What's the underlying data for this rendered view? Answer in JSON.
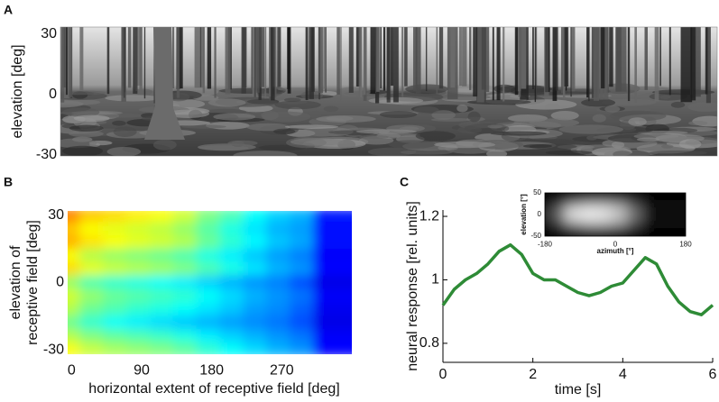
{
  "chart_data": [
    {
      "type": "image",
      "label": "A",
      "ylabel": "elevation [deg]",
      "ylim": [
        -30.5,
        33.6
      ],
      "yticks": [
        -30,
        0,
        30
      ]
    },
    {
      "type": "heatmap",
      "label": "B",
      "ylabel_lines": [
        "elevation of",
        "receptive field [deg]"
      ],
      "xlabel": "horizontal extent of receptive field [deg]",
      "xlim": [
        -5,
        360
      ],
      "xticks": [
        0,
        90,
        180,
        270
      ],
      "ylim": [
        -32,
        32
      ],
      "yticks": [
        -30,
        0,
        30
      ],
      "colormap": "jet",
      "zlim": [
        0,
        1
      ],
      "x": [
        0,
        30,
        60,
        90,
        120,
        150,
        180,
        210,
        240,
        270,
        300,
        330,
        360
      ],
      "y": [
        30,
        24,
        18,
        12,
        6,
        0,
        -6,
        -12,
        -18,
        -24,
        -30
      ],
      "z": [
        [
          0.95,
          0.75,
          0.68,
          0.66,
          0.64,
          0.62,
          0.58,
          0.5,
          0.45,
          0.38,
          0.33,
          0.3,
          0.15
        ],
        [
          0.9,
          0.68,
          0.62,
          0.6,
          0.58,
          0.56,
          0.52,
          0.46,
          0.4,
          0.35,
          0.3,
          0.28,
          0.14
        ],
        [
          0.88,
          0.7,
          0.65,
          0.62,
          0.6,
          0.58,
          0.55,
          0.48,
          0.42,
          0.37,
          0.32,
          0.29,
          0.14
        ],
        [
          0.86,
          0.62,
          0.55,
          0.52,
          0.5,
          0.48,
          0.45,
          0.4,
          0.36,
          0.32,
          0.28,
          0.25,
          0.12
        ],
        [
          0.85,
          0.66,
          0.6,
          0.57,
          0.55,
          0.53,
          0.5,
          0.45,
          0.4,
          0.35,
          0.3,
          0.27,
          0.13
        ],
        [
          0.8,
          0.52,
          0.45,
          0.42,
          0.4,
          0.38,
          0.36,
          0.33,
          0.3,
          0.27,
          0.25,
          0.2,
          0.1
        ],
        [
          0.82,
          0.58,
          0.52,
          0.48,
          0.46,
          0.44,
          0.42,
          0.38,
          0.34,
          0.3,
          0.27,
          0.24,
          0.12
        ],
        [
          0.82,
          0.55,
          0.48,
          0.45,
          0.42,
          0.4,
          0.38,
          0.35,
          0.32,
          0.28,
          0.26,
          0.22,
          0.11
        ],
        [
          0.8,
          0.48,
          0.42,
          0.38,
          0.36,
          0.34,
          0.32,
          0.3,
          0.28,
          0.26,
          0.24,
          0.2,
          0.1
        ],
        [
          0.82,
          0.55,
          0.5,
          0.47,
          0.45,
          0.43,
          0.4,
          0.36,
          0.33,
          0.3,
          0.27,
          0.24,
          0.12
        ],
        [
          0.88,
          0.62,
          0.57,
          0.54,
          0.52,
          0.5,
          0.47,
          0.42,
          0.38,
          0.34,
          0.3,
          0.27,
          0.13
        ]
      ]
    },
    {
      "type": "line",
      "label": "C",
      "ylabel": "neural response [rel. units]",
      "xlabel": "time [s]",
      "xlim": [
        0,
        6
      ],
      "xticks": [
        0,
        2,
        4,
        6
      ],
      "ylim": [
        0.74,
        1.22
      ],
      "yticks": [
        0.8,
        1,
        1.2
      ],
      "x": [
        0,
        0.25,
        0.5,
        0.75,
        1,
        1.25,
        1.5,
        1.75,
        2,
        2.25,
        2.5,
        2.75,
        3,
        3.25,
        3.5,
        3.75,
        4,
        4.25,
        4.5,
        4.75,
        5,
        5.25,
        5.5,
        5.75,
        6
      ],
      "series": [
        {
          "color": "#2e8b36",
          "values": [
            0.92,
            0.97,
            1.0,
            1.02,
            1.05,
            1.09,
            1.11,
            1.08,
            1.02,
            1.0,
            1.0,
            0.98,
            0.96,
            0.95,
            0.96,
            0.98,
            0.99,
            1.03,
            1.07,
            1.05,
            0.98,
            0.93,
            0.9,
            0.89,
            0.92
          ]
        }
      ]
    },
    {
      "type": "heatmap",
      "xlabel": "azimuth [°]",
      "ylabel": "elevation [°]",
      "colormap": "gray",
      "zlim": [
        0,
        1
      ],
      "xlim": [
        -180,
        180
      ],
      "xticks": [
        -180,
        0,
        180
      ],
      "ylim": [
        -50,
        50
      ],
      "yticks": [
        -50,
        0,
        50
      ],
      "x": [
        -160,
        -120,
        -80,
        -40,
        0,
        40,
        80,
        120,
        160
      ],
      "y": [
        40,
        20,
        0,
        -20,
        -40
      ],
      "z": [
        [
          0,
          0,
          0.05,
          0.2,
          0.3,
          0.3,
          0.25,
          0.1,
          0
        ],
        [
          0,
          0.02,
          0.25,
          0.6,
          0.7,
          0.7,
          0.6,
          0.3,
          0.05
        ],
        [
          0,
          0.05,
          0.4,
          0.95,
          1,
          0.95,
          0.8,
          0.45,
          0.08
        ],
        [
          0,
          0.02,
          0.25,
          0.6,
          0.7,
          0.7,
          0.6,
          0.3,
          0.05
        ],
        [
          0,
          0,
          0.05,
          0.2,
          0.3,
          0.3,
          0.25,
          0.1,
          0
        ]
      ]
    }
  ]
}
